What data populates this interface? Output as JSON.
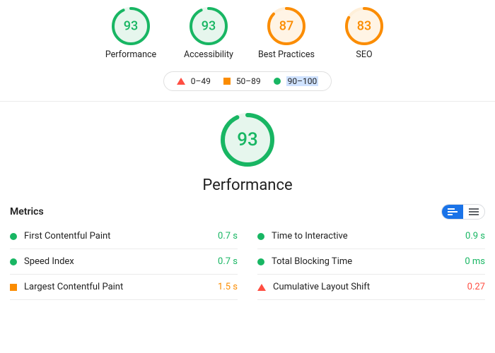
{
  "colors": {
    "good": "#18b663",
    "mid": "#fb8c00",
    "bad": "#ff4e42",
    "good_bg": "#e6f6ed",
    "mid_bg": "#fff4e5",
    "track": "#e8f5ed",
    "track_mid": "#ffefd9",
    "selection": "#cfe2ff",
    "toggle_active": "#1a73e8",
    "toggle_idle": "#5f6368",
    "divider": "#ebebeb"
  },
  "ring": {
    "size_small": 54,
    "stroke_small": 4,
    "size_big": 76,
    "stroke_big": 6,
    "font_small": 18,
    "font_big": 26
  },
  "gauges": [
    {
      "label": "Performance",
      "score": 93,
      "tier": "good"
    },
    {
      "label": "Accessibility",
      "score": 93,
      "tier": "good"
    },
    {
      "label": "Best Practices",
      "score": 87,
      "tier": "mid"
    },
    {
      "label": "SEO",
      "score": 83,
      "tier": "mid"
    }
  ],
  "legend": [
    {
      "shape": "triangle",
      "tier": "bad",
      "text": "0–49"
    },
    {
      "shape": "square",
      "tier": "mid",
      "text": "50–89"
    },
    {
      "shape": "circle",
      "tier": "good",
      "text": "90–100",
      "selected": true
    }
  ],
  "big_gauge": {
    "label": "Performance",
    "score": 93,
    "tier": "good"
  },
  "metrics_title": "Metrics",
  "metrics_left": [
    {
      "name": "First Contentful Paint",
      "value": "0.7 s",
      "tier": "good",
      "shape": "circle"
    },
    {
      "name": "Speed Index",
      "value": "0.7 s",
      "tier": "good",
      "shape": "circle"
    },
    {
      "name": "Largest Contentful Paint",
      "value": "1.5 s",
      "tier": "mid",
      "shape": "square"
    }
  ],
  "metrics_right": [
    {
      "name": "Time to Interactive",
      "value": "0.9 s",
      "tier": "good",
      "shape": "circle"
    },
    {
      "name": "Total Blocking Time",
      "value": "0 ms",
      "tier": "good",
      "shape": "circle"
    },
    {
      "name": "Cumulative Layout Shift",
      "value": "0.27",
      "tier": "bad",
      "shape": "triangle"
    }
  ]
}
